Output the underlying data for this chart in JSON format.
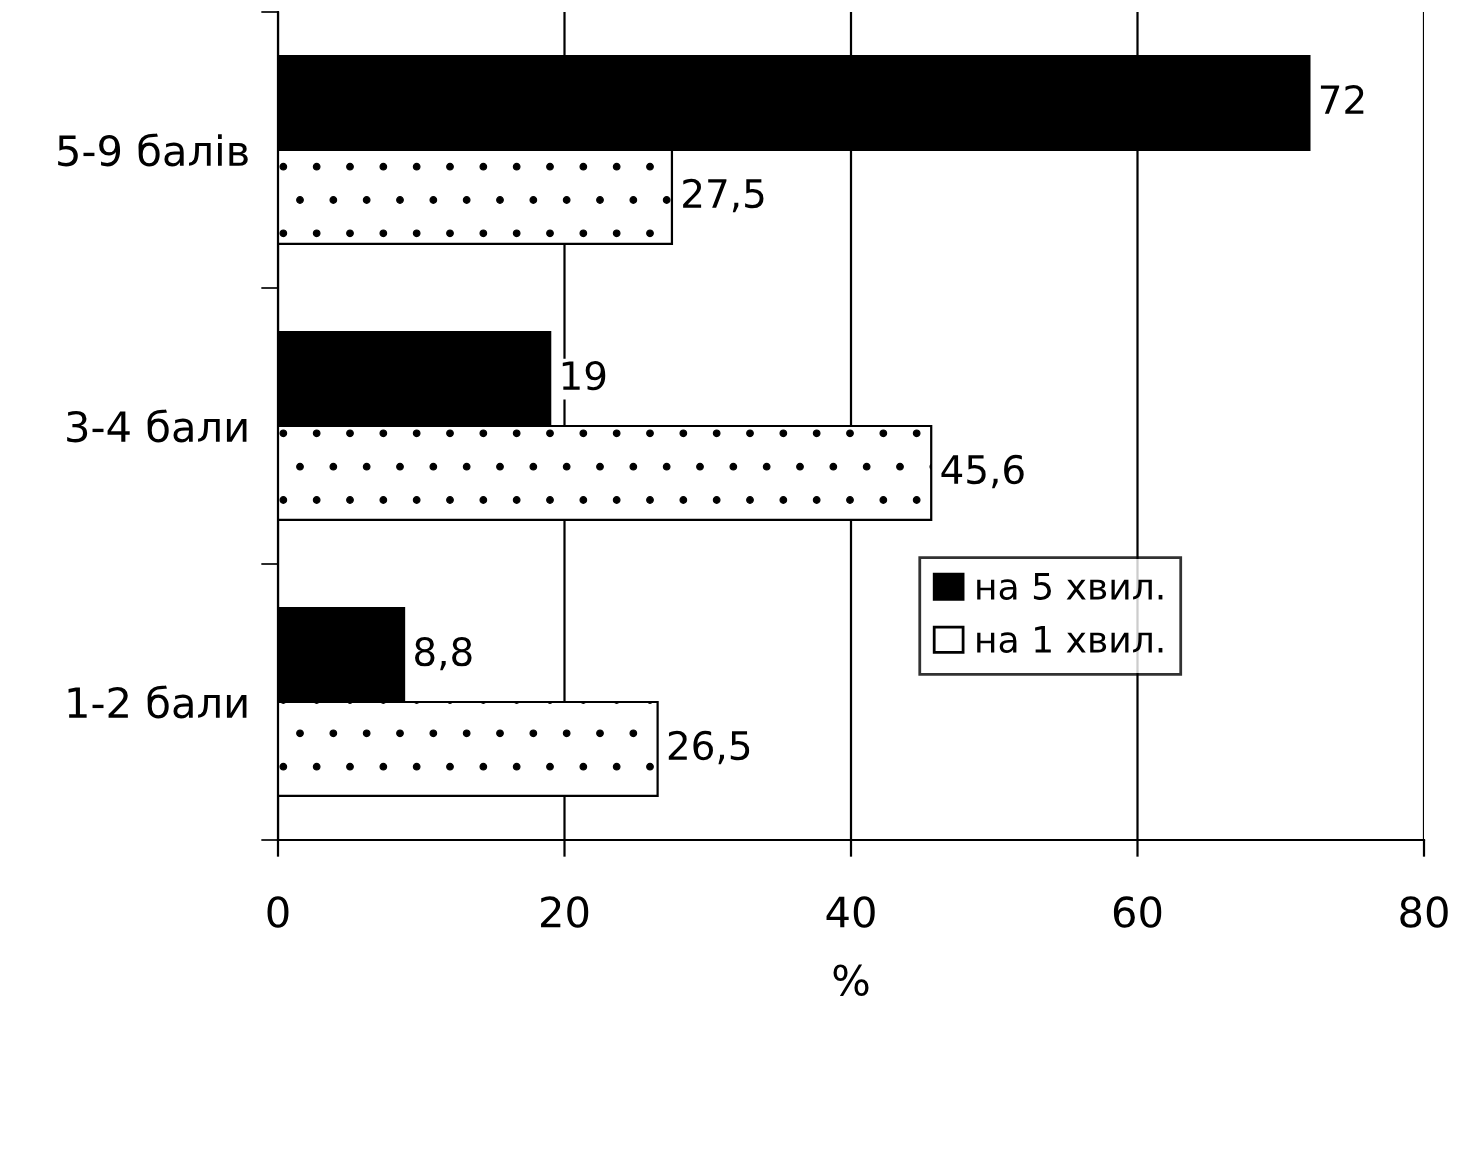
{
  "chart_data": {
    "type": "bar",
    "orientation": "horizontal",
    "categories": [
      "5-9 балів",
      "3-4 бали",
      "1-2 бали"
    ],
    "series": [
      {
        "name": "на 5 хвил.",
        "color": "#000000",
        "values": [
          72,
          19,
          8.8
        ],
        "value_labels": [
          "72",
          "19",
          "8,8"
        ]
      },
      {
        "name": "на 1 хвил.",
        "color": "#ffffff",
        "values": [
          27.5,
          45.6,
          26.5
        ],
        "value_labels": [
          "27,5",
          "45,6",
          "26,5"
        ]
      }
    ],
    "xlabel": "%",
    "xlim": [
      0,
      80
    ],
    "xticks": [
      0,
      20,
      40,
      60,
      80
    ],
    "grid": "x",
    "legend": "bottom right"
  }
}
